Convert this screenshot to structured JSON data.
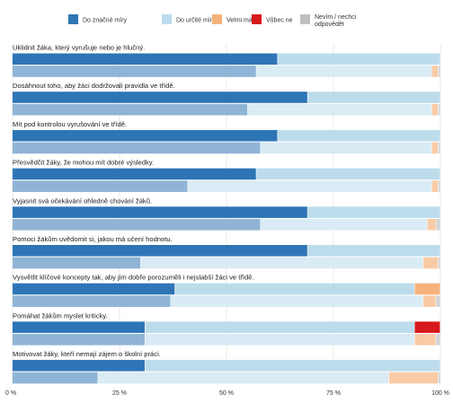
{
  "chart_data": {
    "type": "bar",
    "orientation": "horizontal",
    "stacked": true,
    "xlim": [
      0,
      100
    ],
    "x_ticks": [
      "0 %",
      "25 %",
      "50 %",
      "75 %",
      "100 %"
    ],
    "x_tick_values": [
      0,
      25,
      50,
      75,
      100
    ],
    "legend_position": "top",
    "series_names": [
      "Do značné míry",
      "Do určité míry",
      "Velmi málo",
      "Vůbec ne",
      "Nevím / nechci odpovědět"
    ],
    "series_colors": [
      "#2e75b6",
      "#bcdcec",
      "#f5b27a",
      "#d7191c",
      "#bfbfbf"
    ],
    "series_colors_lower": [
      "#8fb4d6",
      "#d9ebf4",
      "#f8cba6",
      "#e06666",
      "#d4d4d4"
    ],
    "categories": [
      {
        "label": "Uklidnit žáka, který vyrušuje nebo je hlučný.",
        "rows": [
          [
            62,
            38,
            0,
            0,
            0
          ],
          [
            57,
            41,
            1.5,
            0,
            0.5
          ]
        ]
      },
      {
        "label": "Dosáhnout toho, aby žáci dodržovali pravidla ve třídě.",
        "rows": [
          [
            69,
            31,
            0,
            0,
            0
          ],
          [
            55,
            43,
            1.5,
            0,
            0.5
          ]
        ]
      },
      {
        "label": "Mít pod kontrolou vyrušování ve třídě.",
        "rows": [
          [
            62,
            38,
            0,
            0,
            0
          ],
          [
            58,
            40,
            1.5,
            0,
            0.5
          ]
        ]
      },
      {
        "label": "Přesvědčit žáky, že mohou mít dobré výsledky.",
        "rows": [
          [
            57,
            43,
            0,
            0,
            0
          ],
          [
            41,
            57,
            1.5,
            0,
            0.5
          ]
        ]
      },
      {
        "label": "Vyjasnit svá očekávání ohledně chování žáků.",
        "rows": [
          [
            69,
            31,
            0,
            0,
            0
          ],
          [
            58,
            39,
            2,
            0,
            1
          ]
        ]
      },
      {
        "label": "Pomoci žákům uvědomit si, jakou má učení hodnotu.",
        "rows": [
          [
            69,
            31,
            0,
            0,
            0
          ],
          [
            30,
            66,
            3.5,
            0,
            0.5
          ]
        ]
      },
      {
        "label": "Vysvětlit klíčové koncepty tak, aby jim dobře porozuměli i nejslabší žáci ve třídě.",
        "rows": [
          [
            38,
            56,
            6,
            0,
            0
          ],
          [
            37,
            59,
            3,
            0,
            1
          ]
        ]
      },
      {
        "label": "Pomáhat žákům myslet kriticky.",
        "rows": [
          [
            31,
            63,
            0,
            6,
            0
          ],
          [
            31,
            63,
            5,
            0,
            1
          ]
        ]
      },
      {
        "label": "Motivovat žáky, kteří nemají zájem o školní práci.",
        "rows": [
          [
            31,
            69,
            0,
            0,
            0
          ],
          [
            20,
            68,
            11.5,
            0,
            0.5
          ]
        ]
      }
    ]
  }
}
